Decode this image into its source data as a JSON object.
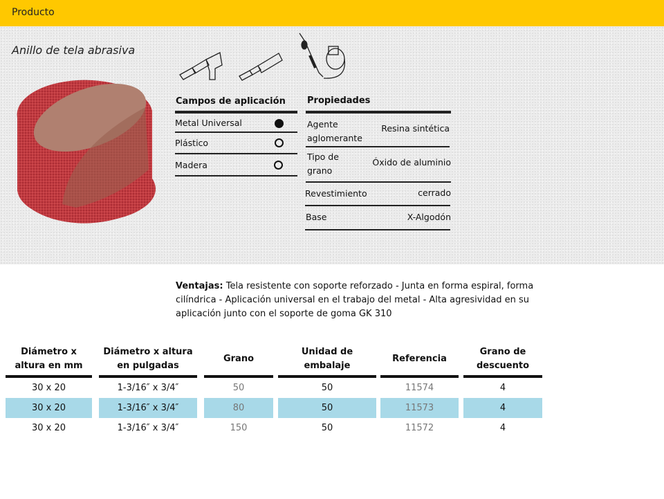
{
  "header": {
    "title": "Producto"
  },
  "product": {
    "title": "Anillo de tela abrasiva"
  },
  "colors": {
    "header": "#ffc800",
    "highlight": "#a8d9e8",
    "ring": "#c0313a"
  },
  "applications": {
    "heading": "Campos de aplicación",
    "items": [
      {
        "label": "Metal Universal",
        "suitability": "filled-circle"
      },
      {
        "label": "Plástico",
        "suitability": "open-circle"
      },
      {
        "label": "Madera",
        "suitability": "open-circle"
      }
    ]
  },
  "properties": {
    "heading": "Propiedades",
    "items": [
      {
        "label": "Agente aglomerante",
        "value": "Resina sintética"
      },
      {
        "label": "Tipo de grano",
        "value": "Óxido de aluminio"
      },
      {
        "label": "Revestimiento",
        "value": "cerrado"
      },
      {
        "label": "Base",
        "value": "X-Algodón"
      }
    ]
  },
  "advantages": {
    "label": "Ventajas:",
    "text": "Tela resistente con soporte reforzado - Junta en forma espiral, forma cilíndrica - Aplicación universal en el trabajo del metal - Alta agresividad en su aplicación junto con el soporte de goma GK 310"
  },
  "table": {
    "headers": [
      "Diámetro x altura en mm",
      "Diámetro x altura en pulgadas",
      "Grano",
      "Unidad de embalaje",
      "Referencia",
      "Grano de descuento"
    ],
    "rows": [
      [
        "30 x 20",
        "1-3/16″ x 3/4″",
        "50",
        "50",
        "11574",
        "4"
      ],
      [
        "30 x 20",
        "1-3/16″ x 3/4″",
        "80",
        "50",
        "11573",
        "4"
      ],
      [
        "30 x 20",
        "1-3/16″ x 3/4″",
        "150",
        "50",
        "11572",
        "4"
      ]
    ],
    "highlighted_row": 1
  }
}
